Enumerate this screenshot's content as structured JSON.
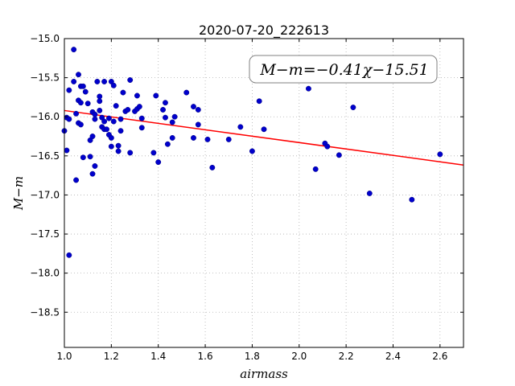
{
  "chart_data": {
    "type": "scatter",
    "title": "2020-07-20_222613",
    "xlabel": "airmass",
    "ylabel": "M−m",
    "xlim": [
      1.0,
      2.7
    ],
    "ylim": [
      -15.0,
      -18.95
    ],
    "y_inverted": true,
    "grid": true,
    "x_ticks": [
      "1.0",
      "1.2",
      "1.4",
      "1.6",
      "1.8",
      "2.0",
      "2.2",
      "2.4",
      "2.6"
    ],
    "y_ticks": [
      "−15.0",
      "−15.5",
      "−16.0",
      "−16.5",
      "−17.0",
      "−17.5",
      "−18.0",
      "−18.5"
    ],
    "annotation": "M−m=−0.41χ−15.51",
    "annotation_placement": "top-right",
    "point_color": "#0000cc",
    "fit_color": "#ff0000",
    "fit": {
      "slope": -0.41,
      "intercept": -15.51,
      "x_range": [
        1.0,
        2.7
      ]
    },
    "points": [
      [
        1.0,
        -16.18
      ],
      [
        1.01,
        -16.43
      ],
      [
        1.01,
        -16.01
      ],
      [
        1.02,
        -16.03
      ],
      [
        1.02,
        -15.66
      ],
      [
        1.02,
        -17.77
      ],
      [
        1.04,
        -15.55
      ],
      [
        1.04,
        -15.14
      ],
      [
        1.05,
        -16.81
      ],
      [
        1.05,
        -15.96
      ],
      [
        1.06,
        -15.79
      ],
      [
        1.06,
        -15.46
      ],
      [
        1.06,
        -16.08
      ],
      [
        1.07,
        -16.1
      ],
      [
        1.07,
        -15.82
      ],
      [
        1.07,
        -15.61
      ],
      [
        1.08,
        -15.61
      ],
      [
        1.08,
        -16.52
      ],
      [
        1.09,
        -15.68
      ],
      [
        1.1,
        -15.83
      ],
      [
        1.11,
        -16.51
      ],
      [
        1.11,
        -16.3
      ],
      [
        1.12,
        -16.73
      ],
      [
        1.12,
        -16.25
      ],
      [
        1.12,
        -15.94
      ],
      [
        1.13,
        -16.63
      ],
      [
        1.13,
        -16.03
      ],
      [
        1.13,
        -15.97
      ],
      [
        1.14,
        -15.55
      ],
      [
        1.15,
        -15.74
      ],
      [
        1.15,
        -15.8
      ],
      [
        1.15,
        -15.92
      ],
      [
        1.16,
        -16.01
      ],
      [
        1.16,
        -16.13
      ],
      [
        1.17,
        -16.16
      ],
      [
        1.17,
        -16.06
      ],
      [
        1.17,
        -15.55
      ],
      [
        1.18,
        -16.16
      ],
      [
        1.19,
        -16.02
      ],
      [
        1.19,
        -16.23
      ],
      [
        1.2,
        -16.38
      ],
      [
        1.2,
        -16.27
      ],
      [
        1.2,
        -15.55
      ],
      [
        1.21,
        -15.6
      ],
      [
        1.21,
        -16.06
      ],
      [
        1.22,
        -15.86
      ],
      [
        1.23,
        -16.37
      ],
      [
        1.23,
        -16.44
      ],
      [
        1.24,
        -16.18
      ],
      [
        1.24,
        -16.03
      ],
      [
        1.25,
        -15.69
      ],
      [
        1.26,
        -15.93
      ],
      [
        1.27,
        -15.91
      ],
      [
        1.28,
        -15.53
      ],
      [
        1.28,
        -16.46
      ],
      [
        1.3,
        -15.93
      ],
      [
        1.31,
        -15.9
      ],
      [
        1.31,
        -15.73
      ],
      [
        1.32,
        -15.87
      ],
      [
        1.33,
        -16.14
      ],
      [
        1.33,
        -16.02
      ],
      [
        1.38,
        -16.46
      ],
      [
        1.39,
        -15.73
      ],
      [
        1.4,
        -16.58
      ],
      [
        1.42,
        -15.91
      ],
      [
        1.43,
        -15.82
      ],
      [
        1.43,
        -16.01
      ],
      [
        1.44,
        -16.35
      ],
      [
        1.46,
        -16.07
      ],
      [
        1.46,
        -16.27
      ],
      [
        1.47,
        -16.0
      ],
      [
        1.52,
        -15.69
      ],
      [
        1.55,
        -15.87
      ],
      [
        1.55,
        -16.27
      ],
      [
        1.57,
        -16.1
      ],
      [
        1.57,
        -15.91
      ],
      [
        1.61,
        -16.29
      ],
      [
        1.63,
        -16.65
      ],
      [
        1.7,
        -16.29
      ],
      [
        1.75,
        -16.13
      ],
      [
        1.8,
        -16.44
      ],
      [
        1.83,
        -15.8
      ],
      [
        1.85,
        -16.16
      ],
      [
        2.04,
        -15.64
      ],
      [
        2.07,
        -16.67
      ],
      [
        2.11,
        -16.34
      ],
      [
        2.12,
        -16.38
      ],
      [
        2.17,
        -16.49
      ],
      [
        2.23,
        -15.88
      ],
      [
        2.3,
        -16.98
      ],
      [
        2.48,
        -17.06
      ],
      [
        2.6,
        -16.48
      ]
    ]
  }
}
